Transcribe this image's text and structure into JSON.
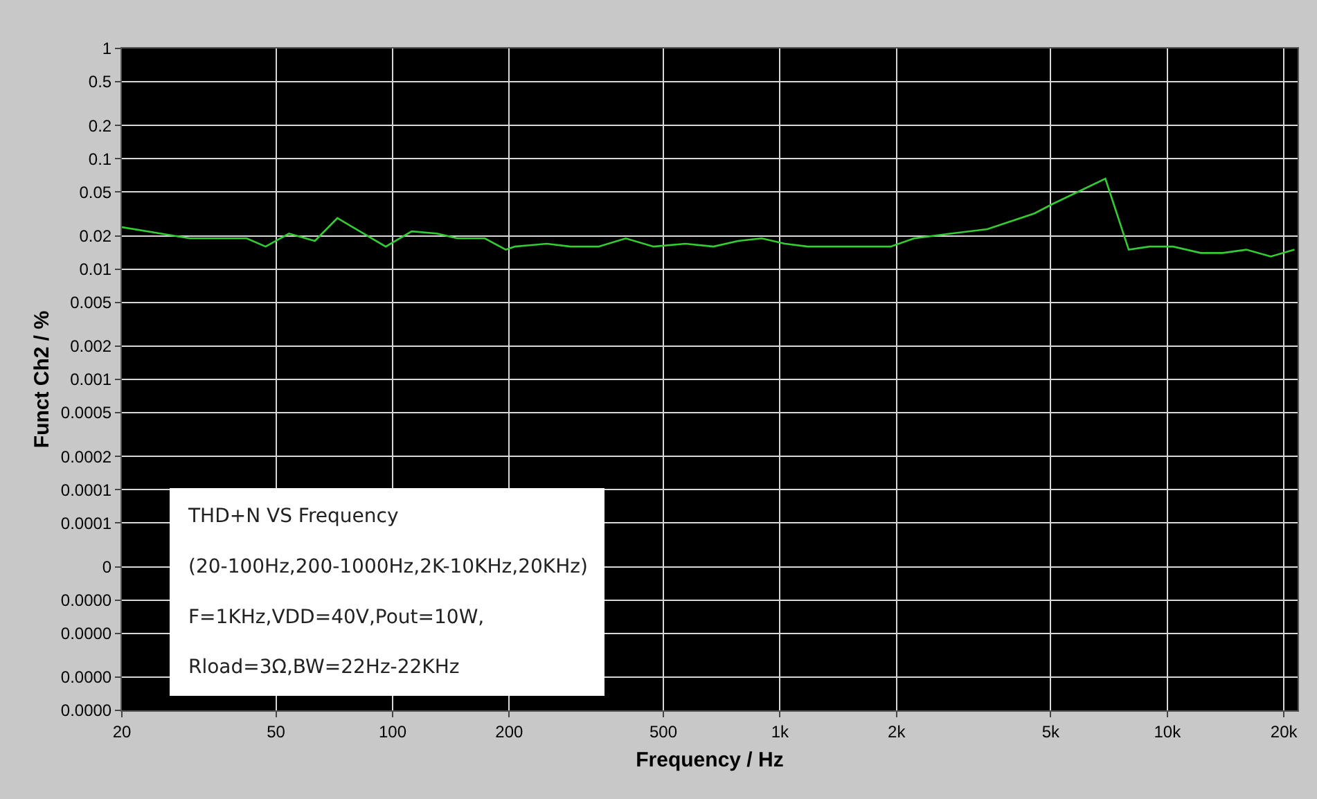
{
  "chart_data": {
    "type": "line",
    "xlabel": "Frequency / Hz",
    "ylabel": "Funct Ch2 / %",
    "log": "xy",
    "grid": true,
    "marker": "none",
    "line_style": "solid",
    "x": [
      20,
      30,
      42,
      47,
      54,
      63,
      72,
      96,
      112,
      130,
      147,
      173,
      196,
      207,
      250,
      288,
      340,
      400,
      472,
      570,
      673,
      780,
      897,
      1030,
      1180,
      1930,
      2220,
      2770,
      3430,
      4540,
      5060,
      6920,
      7950,
      8990,
      10350,
      12200,
      13900,
      16000,
      18500,
      21300
    ],
    "series": [
      {
        "color": "#33cc33",
        "values": [
          0.024,
          0.019,
          0.019,
          0.016,
          0.021,
          0.018,
          0.029,
          0.016,
          0.022,
          0.021,
          0.019,
          0.019,
          0.015,
          0.016,
          0.017,
          0.016,
          0.016,
          0.019,
          0.016,
          0.017,
          0.016,
          0.018,
          0.019,
          0.017,
          0.016,
          0.016,
          0.019,
          0.021,
          0.023,
          0.032,
          0.039,
          0.066,
          0.015,
          0.016,
          0.016,
          0.014,
          0.014,
          0.015,
          0.013,
          0.015
        ]
      }
    ],
    "xlim": [
      20,
      21700
    ],
    "xticks": [
      20,
      50,
      100,
      200,
      500,
      {
        "value": 1000,
        "label": "1k"
      },
      {
        "value": 2000,
        "label": "2k"
      },
      {
        "value": 5000,
        "label": "5k"
      },
      {
        "value": 10000,
        "label": "10k"
      },
      {
        "value": 20000,
        "label": "20k"
      }
    ],
    "ylim": [
      1e-06,
      1
    ],
    "yticks": [
      1,
      0.5,
      0.2,
      0.1,
      0.05,
      0.02,
      0.01,
      0.005,
      0.002,
      0.001,
      0.0005,
      0.0002,
      0.0001,
      {
        "value": 5e-05,
        "label": "0.0001"
      },
      {
        "value": 2e-05,
        "label": "0"
      },
      {
        "value": 1e-05,
        "label": "0.0000"
      },
      {
        "value": 5e-06,
        "label": "0.0000"
      },
      {
        "value": 2e-06,
        "label": "0.0000"
      },
      {
        "value": 1e-06,
        "label": "0.0000"
      }
    ],
    "annotations": [
      "THD+N VS Frequency",
      "(20-100Hz,200-1000Hz,2K-10KHz,20KHz)",
      "F=1KHz,VDD=40V,Pout=10W,",
      "Rload=3Ω,BW=22Hz-22KHz"
    ]
  }
}
